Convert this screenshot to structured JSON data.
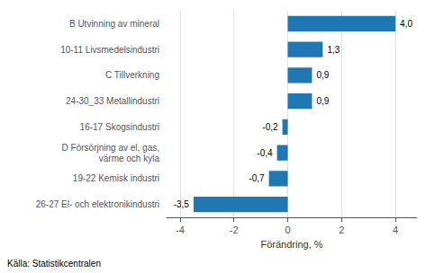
{
  "chart_data": {
    "type": "bar",
    "orientation": "horizontal",
    "categories": [
      "26-27 El- och elektronikindustri",
      "19-22 Kemisk industri",
      "D Försörjning av el, gas,\nvärme och kyla",
      "16-17 Skogsindustri",
      "24-30_33 Metallindustri",
      "C Tillverkning",
      "10-11 Livsmedelsindustri",
      "B Utvinning av mineral"
    ],
    "values": [
      -3.5,
      -0.7,
      -0.4,
      -0.2,
      0.9,
      0.9,
      1.3,
      4.0
    ],
    "value_labels": [
      "-3,5",
      "-0,7",
      "-0,4",
      "-0,2",
      "0,9",
      "0,9",
      "1,3",
      "4,0"
    ],
    "data_labels": true,
    "color": "#1F77B4",
    "xlabel": "Förändring, %",
    "xlim": [
      -4.5,
      4.8
    ],
    "xticks": [
      -4,
      -2,
      0,
      2,
      4
    ],
    "grid": true,
    "annotation": "Källa: Statistikcentralen"
  }
}
